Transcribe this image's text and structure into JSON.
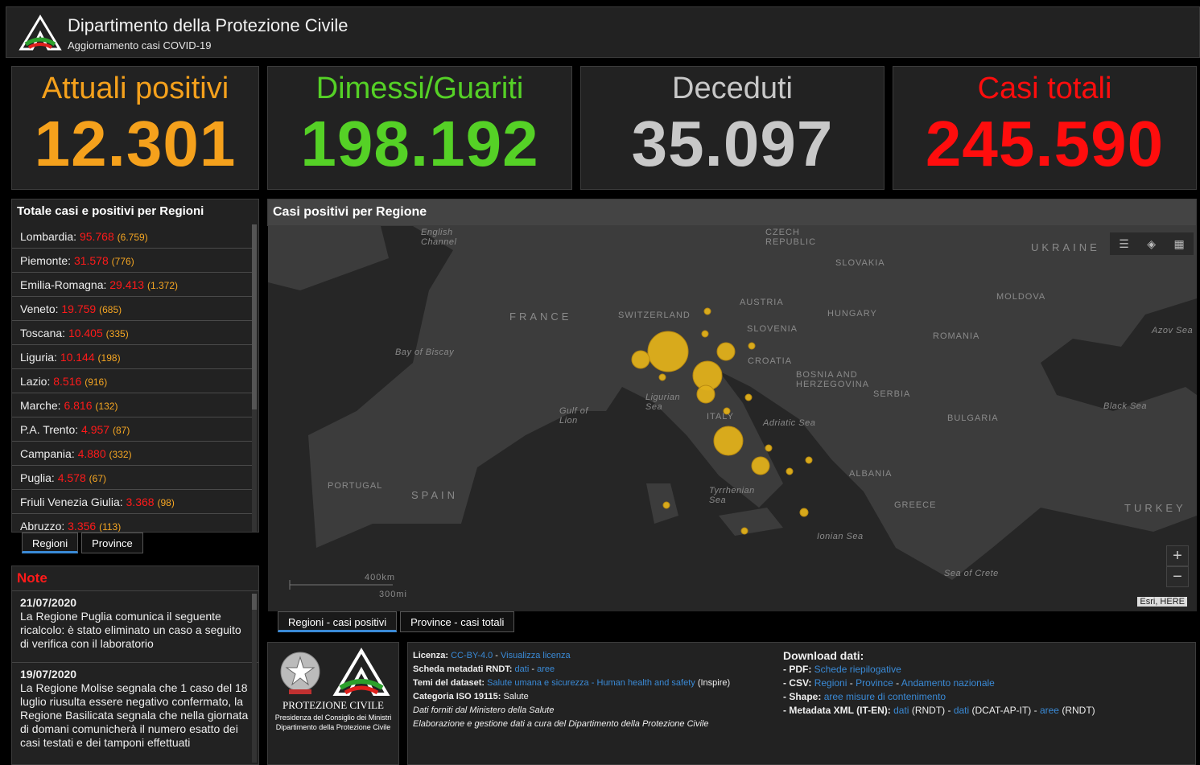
{
  "header": {
    "title": "Dipartimento della Protezione Civile",
    "subtitle": "Aggiornamento casi COVID-19",
    "logo": "protezione-civile-logo"
  },
  "stats": [
    {
      "label": "Attuali positivi",
      "value": "12.301",
      "color": "#f5a11c"
    },
    {
      "label": "Dimessi/Guariti",
      "value": "198.192",
      "color": "#55d126"
    },
    {
      "label": "Deceduti",
      "value": "35.097",
      "color": "#c8c8c8"
    },
    {
      "label": "Casi totali",
      "value": "245.590",
      "color": "#ff0d0d"
    }
  ],
  "regions_panel": {
    "title": "Totale casi e positivi per Regioni",
    "rows": [
      {
        "name": "Lombardia:",
        "total": "95.768",
        "positive": "6.759"
      },
      {
        "name": "Piemonte:",
        "total": "31.578",
        "positive": "776"
      },
      {
        "name": "Emilia-Romagna:",
        "total": "29.413",
        "positive": "1.372"
      },
      {
        "name": "Veneto:",
        "total": "19.759",
        "positive": "685"
      },
      {
        "name": "Toscana:",
        "total": "10.405",
        "positive": "335"
      },
      {
        "name": "Liguria:",
        "total": "10.144",
        "positive": "198"
      },
      {
        "name": "Lazio:",
        "total": "8.516",
        "positive": "916"
      },
      {
        "name": "Marche:",
        "total": "6.816",
        "positive": "132"
      },
      {
        "name": "P.A. Trento:",
        "total": "4.957",
        "positive": "87"
      },
      {
        "name": "Campania:",
        "total": "4.880",
        "positive": "332"
      },
      {
        "name": "Puglia:",
        "total": "4.578",
        "positive": "67"
      },
      {
        "name": "Friuli Venezia Giulia:",
        "total": "3.368",
        "positive": "98"
      },
      {
        "name": "Abruzzo:",
        "total": "3.356",
        "positive": "113"
      }
    ],
    "tabs": [
      "Regioni",
      "Province"
    ]
  },
  "notes": {
    "title": "Note",
    "items": [
      {
        "date": "21/07/2020",
        "text": "La Regione Puglia comunica il seguente ricalcolo: è stato eliminato un caso a seguito di verifica con il laboratorio"
      },
      {
        "date": "19/07/2020",
        "text": "La Regione Molise segnala che 1 caso del 18 luglio riusulta essere negativo confermato, la Regione Basilicata segnala che nella giornata di domani comunicherà il numero esatto dei casi testati e dei tamponi effettuati"
      }
    ]
  },
  "map": {
    "title": "Casi positivi per Regione",
    "labels": {
      "english_channel": "English\nChannel",
      "czech": "CZECH\nREPUBLIC",
      "ukraine": "UKRAINE",
      "slovakia": "SLOVAKIA",
      "moldova": "MOLDOVA",
      "france": "FRANCE",
      "switzerland": "SWITZERLAND",
      "austria": "AUSTRIA",
      "hungary": "HUNGARY",
      "slovenia": "SLOVENIA",
      "romania": "ROMANIA",
      "azov": "Azov Sea",
      "biscay": "Bay of Biscay",
      "croatia": "CROATIA",
      "bosnia": "BOSNIA AND\nHERZEGOVINA",
      "serbia": "SERBIA",
      "ligurian": "Ligurian\nSea",
      "lion": "Gulf of\nLion",
      "italy": "ITALY",
      "adriatic": "Adriatic Sea",
      "bulgaria": "BULGARIA",
      "black": "Black Sea",
      "portugal": "PORTUGAL",
      "spain": "SPAIN",
      "albania": "ALBANIA",
      "tyrrhenian": "Tyrrhenian\nSea",
      "greece": "GREECE",
      "turkey": "TURKEY",
      "ionian": "Ionian Sea",
      "crete": "Sea of Crete",
      "scale_km": "400km",
      "scale_mi": "300mi",
      "attribution": "Esri, HERE"
    },
    "zoom_in": "+",
    "zoom_out": "−",
    "tabs": [
      "Regioni - casi positivi",
      "Province - casi totali"
    ],
    "bubble_color": "#e0b01a"
  },
  "footer_logo": {
    "title": "PROTEZIONE CIVILE",
    "line1": "Presidenza del Consiglio dei Ministri",
    "line2": "Dipartimento della Protezione Civile"
  },
  "info": {
    "licenza_label": "Licenza:",
    "licenza_link": "CC-BY-4.0",
    "sep1": " - ",
    "licenza_view": "Visualizza licenza",
    "scheda_label": "Scheda metadati RNDT:",
    "scheda_dati": "dati",
    "scheda_sep": " - ",
    "scheda_aree": "aree",
    "temi_label": "Temi del dataset:",
    "temi_link": "Salute umana e sicurezza - Human health and safety",
    "temi_suffix": " (Inspire)",
    "iso_label": "Categoria ISO 19115:",
    "iso_value": " Salute",
    "line_dati": "Dati forniti dal Ministero della Salute",
    "line_elab": "Elaborazione e gestione dati a cura del Dipartimento della Protezione Civile",
    "dl_title": "Download dati:",
    "pdf_label": "- PDF:",
    "pdf_link": "Schede riepilogative",
    "csv_label": "- CSV:",
    "csv_regioni": "Regioni",
    "csv_province": "Province",
    "csv_andamento": "Andamento nazionale",
    "shape_label": "- Shape:",
    "shape_link": "aree misure di contenimento",
    "meta_label": "- Metadata XML (IT-EN):",
    "meta_dati1": "dati",
    "meta_rndt": " (RNDT) - ",
    "meta_dati2": "dati",
    "meta_dcat": " (DCAT-AP-IT) - ",
    "meta_aree": "aree",
    "meta_rndt2": " (RNDT)",
    "dash": " - "
  }
}
